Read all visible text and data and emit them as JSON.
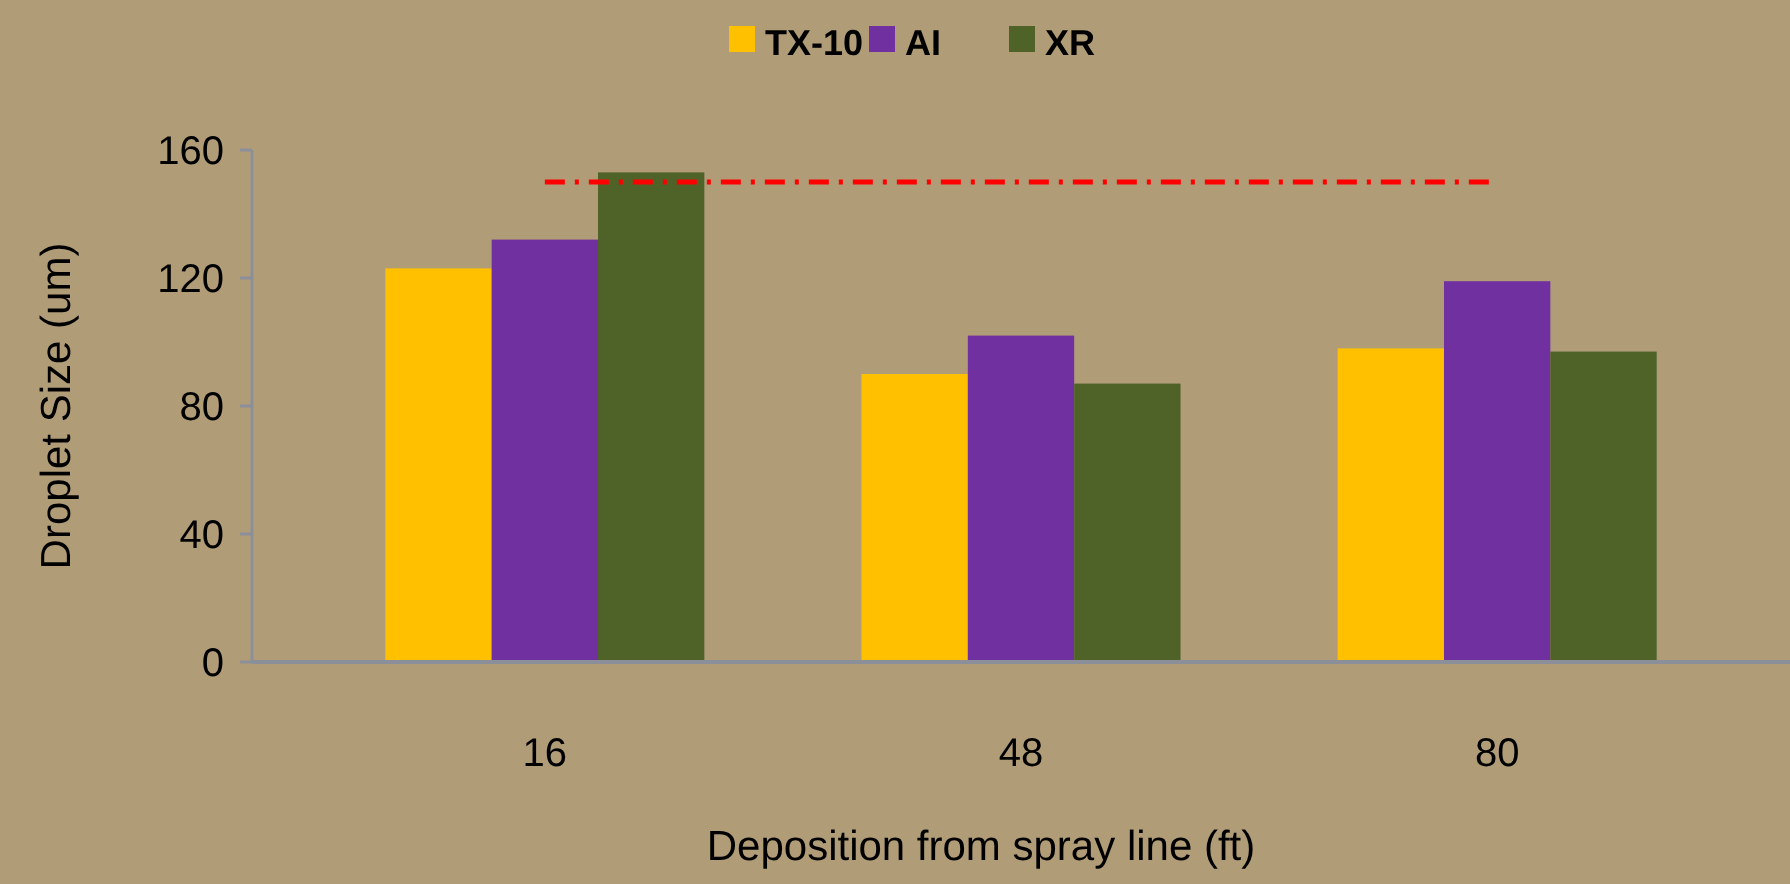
{
  "chart_data": {
    "type": "bar",
    "xlabel": "Deposition from spray line (ft)",
    "ylabel": "Droplet Size (um)",
    "categories": [
      "16",
      "48",
      "80"
    ],
    "series": [
      {
        "name": "TX-10",
        "color": "#ffc000",
        "values": [
          123,
          90,
          98
        ]
      },
      {
        "name": "AI",
        "color": "#7030a0",
        "values": [
          132,
          102,
          119
        ]
      },
      {
        "name": "XR",
        "color": "#4f6228",
        "values": [
          153,
          87,
          97
        ]
      }
    ],
    "ylim": [
      0,
      160
    ],
    "yticks": [
      0,
      40,
      80,
      120,
      160
    ],
    "grid": false,
    "legend": "top",
    "ref_lines": [
      {
        "axis": "y",
        "value": 150,
        "label": null,
        "color": "#ff0000",
        "line_style": "dashed"
      }
    ]
  }
}
